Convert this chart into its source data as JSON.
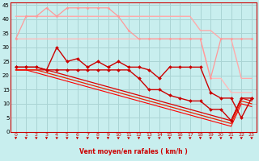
{
  "xlabel": "Vent moyen/en rafales ( km/h )",
  "background_color": "#c8eeee",
  "grid_color": "#aad4d4",
  "x": [
    0,
    1,
    2,
    3,
    4,
    5,
    6,
    7,
    8,
    9,
    10,
    11,
    12,
    13,
    14,
    15,
    16,
    17,
    18,
    19,
    20,
    21,
    22,
    23
  ],
  "ylim": [
    0,
    46
  ],
  "xlim": [
    0,
    23
  ],
  "yticks": [
    0,
    5,
    10,
    15,
    20,
    25,
    30,
    35,
    40,
    45
  ],
  "xticks": [
    0,
    1,
    2,
    3,
    4,
    5,
    6,
    7,
    8,
    9,
    10,
    11,
    12,
    13,
    14,
    15,
    16,
    17,
    18,
    19,
    20,
    21,
    22,
    23
  ],
  "arrow_color": "#cc0000",
  "tick_color": "#cc0000",
  "spine_color": "#cc0000",
  "lines": [
    {
      "y": [
        33,
        41,
        41,
        44,
        41,
        44,
        44,
        44,
        44,
        44,
        41,
        36,
        33,
        33,
        33,
        33,
        33,
        33,
        33,
        19,
        33,
        33,
        33,
        33
      ],
      "color": "#ff9999",
      "lw": 0.9,
      "marker": "D",
      "ms": 1.5
    },
    {
      "y": [
        41,
        41,
        41,
        41,
        41,
        41,
        41,
        41,
        41,
        41,
        41,
        41,
        41,
        41,
        41,
        41,
        41,
        41,
        36,
        36,
        33,
        33,
        19,
        19
      ],
      "color": "#ffaaaa",
      "lw": 1.0,
      "marker": null,
      "ms": 0
    },
    {
      "y": [
        33,
        33,
        33,
        33,
        33,
        33,
        33,
        33,
        33,
        33,
        33,
        33,
        33,
        33,
        33,
        33,
        33,
        33,
        33,
        19,
        19,
        14,
        14,
        14
      ],
      "color": "#ffbbbb",
      "lw": 1.0,
      "marker": null,
      "ms": 0
    },
    {
      "y": [
        23,
        23,
        23,
        22,
        30,
        25,
        26,
        23,
        25,
        23,
        25,
        23,
        23,
        22,
        19,
        23,
        23,
        23,
        23,
        14,
        12,
        12,
        5,
        12
      ],
      "color": "#cc0000",
      "lw": 1.0,
      "marker": "D",
      "ms": 2.0
    },
    {
      "y": [
        23,
        23,
        23,
        22,
        22,
        22,
        22,
        22,
        22,
        22,
        22,
        22,
        19,
        15,
        15,
        13,
        12,
        11,
        11,
        8,
        8,
        4,
        12,
        12
      ],
      "color": "#cc0000",
      "lw": 1.0,
      "marker": "D",
      "ms": 2.0
    },
    {
      "y": [
        22,
        22,
        22,
        22,
        21,
        20,
        19,
        18,
        17,
        16,
        15,
        14,
        13,
        12,
        11,
        10,
        9,
        8,
        7,
        6,
        5,
        4,
        12,
        11
      ],
      "color": "#dd0000",
      "lw": 0.9,
      "marker": null,
      "ms": 0
    },
    {
      "y": [
        22,
        22,
        22,
        21,
        20,
        19,
        18,
        17,
        16,
        15,
        14,
        13,
        12,
        11,
        10,
        9,
        8,
        7,
        6,
        5,
        4,
        3,
        11,
        10
      ],
      "color": "#ee2200",
      "lw": 0.9,
      "marker": null,
      "ms": 0
    },
    {
      "y": [
        22,
        22,
        21,
        20,
        19,
        18,
        17,
        16,
        15,
        14,
        13,
        12,
        11,
        10,
        9,
        8,
        7,
        6,
        5,
        4,
        3,
        2,
        10,
        9
      ],
      "color": "#ff0000",
      "lw": 0.8,
      "marker": null,
      "ms": 0
    }
  ]
}
